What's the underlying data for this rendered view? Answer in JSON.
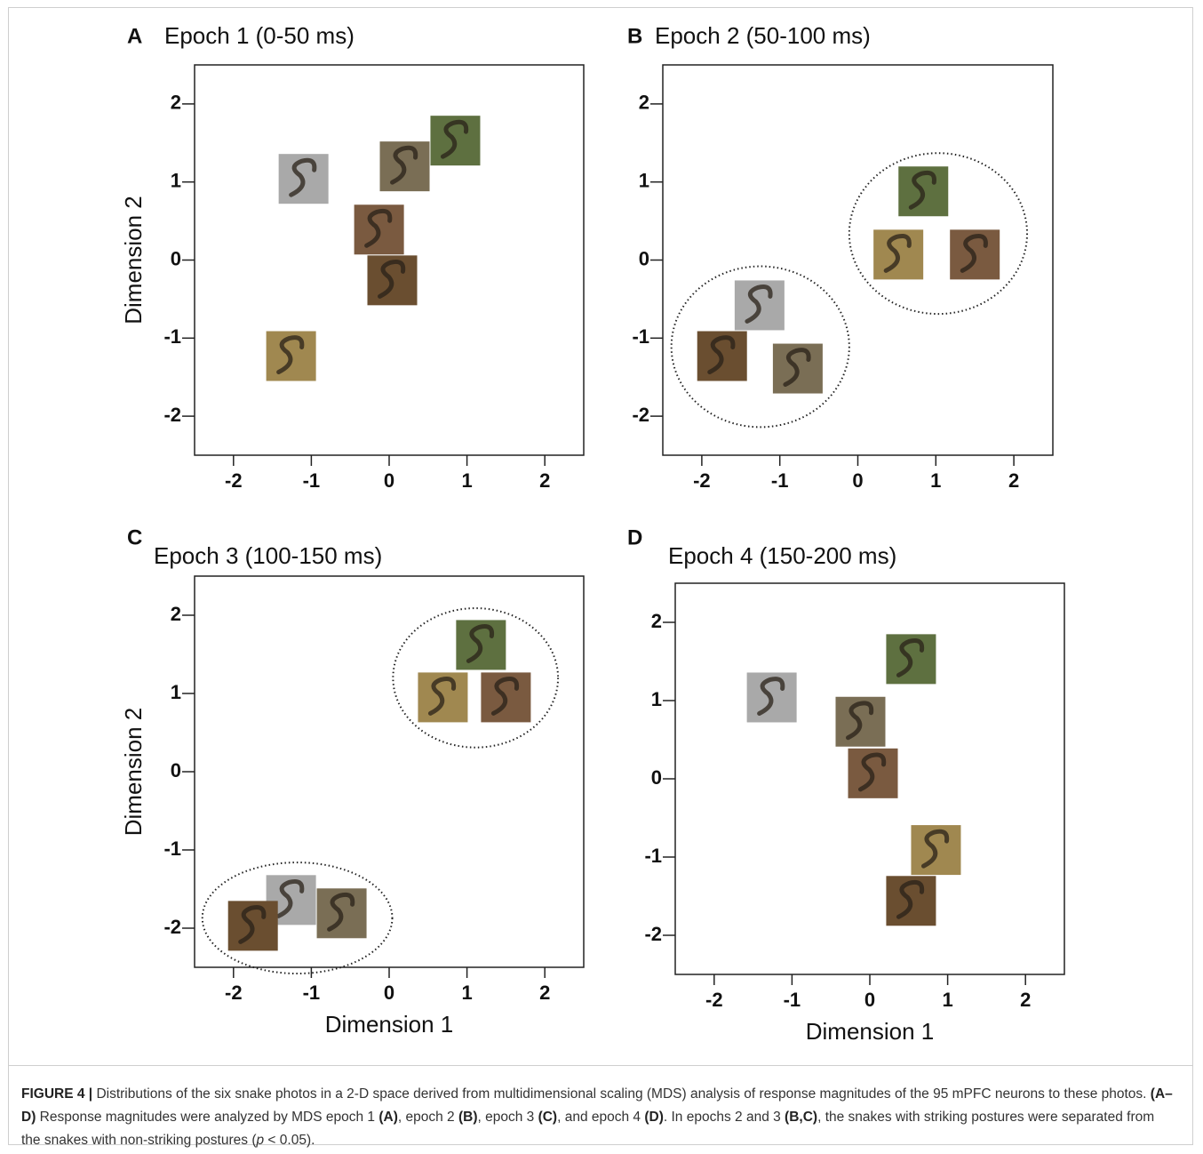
{
  "chart_data": [
    {
      "type": "scatter",
      "panel": "A",
      "title": "Epoch 1 (0-50 ms)",
      "ylabel": "Dimension 2",
      "xlim": [
        -2.5,
        2.5
      ],
      "ylim": [
        -2.5,
        2.5
      ],
      "xticks": [
        -2,
        -1,
        0,
        1,
        2
      ],
      "yticks": [
        -2,
        -1,
        0,
        1,
        2
      ],
      "x": [
        -1.1,
        0.2,
        0.85,
        -0.13,
        0.04,
        -1.26
      ],
      "values": [
        1.04,
        1.2,
        1.53,
        0.39,
        -0.26,
        -1.23
      ],
      "colors": [
        "#a9a9a9",
        "#7a6e55",
        "#5e7040",
        "#7a5a40",
        "#6a4e30",
        "#a08850"
      ]
    },
    {
      "type": "scatter",
      "panel": "B",
      "title": "Epoch 2 (50-100 ms)",
      "xlim": [
        -2.5,
        2.5
      ],
      "ylim": [
        -2.5,
        2.5
      ],
      "xticks": [
        -2,
        -1,
        0,
        1,
        2
      ],
      "yticks": [
        -2,
        -1,
        0,
        1,
        2
      ],
      "x": [
        -1.26,
        -1.74,
        -0.77,
        0.84,
        0.52,
        1.5
      ],
      "values": [
        -0.58,
        -1.23,
        -1.39,
        0.88,
        0.07,
        0.07
      ],
      "colors": [
        "#a9a9a9",
        "#6a4e30",
        "#7a6e55",
        "#5e7040",
        "#a08850",
        "#7a5a40"
      ],
      "ellipses": [
        {
          "cx": -1.25,
          "cy": -1.11,
          "rx": 1.14,
          "ry": 1.03
        },
        {
          "cx": 1.03,
          "cy": 0.34,
          "rx": 1.14,
          "ry": 1.03
        }
      ]
    },
    {
      "type": "scatter",
      "panel": "C",
      "title": "Epoch 3 (100-150 ms)",
      "xlabel": "Dimension 1",
      "ylabel": "Dimension 2",
      "xlim": [
        -2.5,
        2.5
      ],
      "ylim": [
        -2.5,
        2.5
      ],
      "xticks": [
        -2,
        -1,
        0,
        1,
        2
      ],
      "yticks": [
        -2,
        -1,
        0,
        1,
        2
      ],
      "x": [
        1.18,
        0.69,
        1.5,
        -1.26,
        -1.75,
        -0.61
      ],
      "values": [
        1.62,
        0.95,
        0.95,
        -1.64,
        -1.97,
        -1.81
      ],
      "colors": [
        "#5e7040",
        "#a08850",
        "#7a5a40",
        "#a9a9a9",
        "#6a4e30",
        "#7a6e55"
      ],
      "ellipses": [
        {
          "cx": 1.11,
          "cy": 1.2,
          "rx": 1.06,
          "ry": 0.89
        },
        {
          "cx": -1.18,
          "cy": -1.87,
          "rx": 1.22,
          "ry": 0.71
        }
      ]
    },
    {
      "type": "scatter",
      "panel": "D",
      "title": "Epoch 4 (150-200 ms)",
      "xlabel": "Dimension 1",
      "xlim": [
        -2.5,
        2.5
      ],
      "ylim": [
        -2.5,
        2.5
      ],
      "xticks": [
        -2,
        -1,
        0,
        1,
        2
      ],
      "yticks": [
        -2,
        -1,
        0,
        1,
        2
      ],
      "x": [
        0.53,
        -1.26,
        -0.12,
        0.04,
        0.85,
        0.53
      ],
      "values": [
        1.53,
        1.04,
        0.73,
        0.07,
        -0.91,
        -1.56
      ],
      "colors": [
        "#5e7040",
        "#a9a9a9",
        "#7a6e55",
        "#7a5a40",
        "#a08850",
        "#6a4e30"
      ]
    }
  ],
  "caption": [
    {
      "text": "FIGURE 4 | ",
      "style": "bold"
    },
    {
      "text": "Distributions of the six snake photos in a 2-D space derived from multidimensional scaling (MDS) analysis of response magnitudes of the 95 mPFC neurons to these photos. ",
      "style": "normal"
    },
    {
      "text": "(A–D)",
      "style": "bold"
    },
    {
      "text": " Response magnitudes were analyzed by MDS epoch 1 ",
      "style": "normal"
    },
    {
      "text": "(A)",
      "style": "bold"
    },
    {
      "text": ", epoch 2 ",
      "style": "normal"
    },
    {
      "text": "(B)",
      "style": "bold"
    },
    {
      "text": ", epoch 3 ",
      "style": "normal"
    },
    {
      "text": "(C)",
      "style": "bold"
    },
    {
      "text": ", and epoch 4 ",
      "style": "normal"
    },
    {
      "text": "(D)",
      "style": "bold"
    },
    {
      "text": ". In epochs 2 and 3 ",
      "style": "normal"
    },
    {
      "text": "(B,C)",
      "style": "bold"
    },
    {
      "text": ", the snakes with striking postures were separated from the snakes with non-striking postures (",
      "style": "normal"
    },
    {
      "text": "p",
      "style": "italic"
    },
    {
      "text": " < 0.05).",
      "style": "normal"
    }
  ]
}
